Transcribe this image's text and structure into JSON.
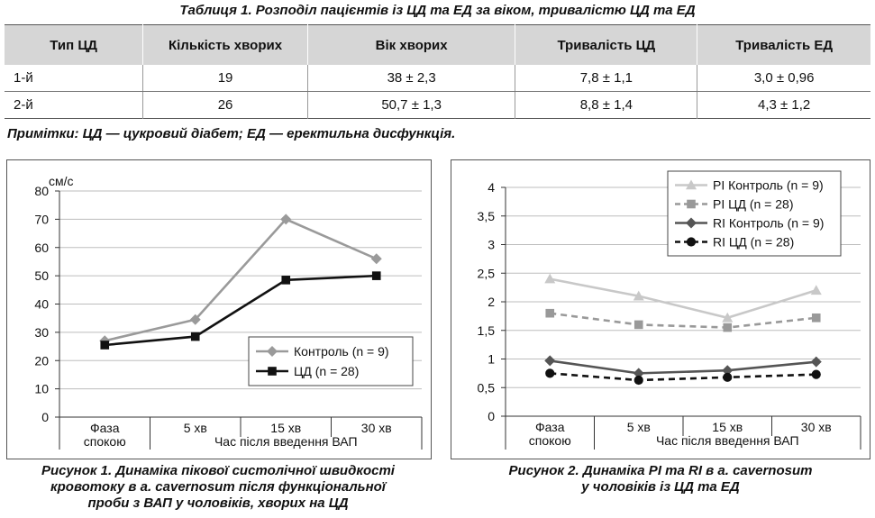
{
  "table": {
    "title": "Таблиця 1.  Розподіл пацієнтів із ЦД та ЕД за віком, тривалістю ЦД та ЕД",
    "headers": [
      "Тип ЦД",
      "Кількість хворих",
      "Вік хворих",
      "Тривалість ЦД",
      "Тривалість ЕД"
    ],
    "rows": [
      [
        "1-й",
        "19",
        "38 ± 2,3",
        "7,8 ± 1,1",
        "3,0 ± 0,96"
      ],
      [
        "2-й",
        "26",
        "50,7 ± 1,3",
        "8,8 ± 1,4",
        "4,3 ± 1,2"
      ]
    ],
    "notes": "Примітки: ЦД — цукровий діабет; ЕД — еректильна дисфункція."
  },
  "chart_data": [
    {
      "type": "line",
      "unit_label": "см/с",
      "categories": [
        "Фаза спокою",
        "5 хв",
        "15 хв",
        "30 хв"
      ],
      "category_lines": [
        [
          "Фаза",
          "спокою"
        ],
        [
          "5 хв"
        ],
        [
          "15 хв"
        ],
        [
          "30 хв"
        ]
      ],
      "xlabel": "Час після введення ВАП",
      "ylim": [
        0,
        80
      ],
      "yticks": [
        "0",
        "10",
        "20",
        "30",
        "40",
        "50",
        "60",
        "70",
        "80"
      ],
      "yvals": [
        0,
        10,
        20,
        30,
        40,
        50,
        60,
        70,
        80
      ],
      "grid": true,
      "legend_position": "bottom-right",
      "series": [
        {
          "name": "Контроль (n = 9)",
          "values": [
            27,
            34.5,
            70,
            56
          ],
          "color": "#9a9a9a",
          "marker": "diamond",
          "dash": "solid"
        },
        {
          "name": "ЦД (n = 28)",
          "values": [
            25.5,
            28.5,
            48.5,
            50
          ],
          "color": "#111111",
          "marker": "square",
          "dash": "solid"
        }
      ],
      "caption": [
        "Рисунок 1.  Динаміка пікової систолічної швидкості",
        "кровотоку в a. cavernosum після функціональної",
        "проби з ВАП у чоловіків, хворих на ЦД"
      ]
    },
    {
      "type": "line",
      "categories": [
        "Фаза спокою",
        "5 хв",
        "15 хв",
        "30 хв"
      ],
      "category_lines": [
        [
          "Фаза",
          "спокою"
        ],
        [
          "5 хв"
        ],
        [
          "15 хв"
        ],
        [
          "30 хв"
        ]
      ],
      "xlabel": "Час після введення ВАП",
      "ylim": [
        0,
        4
      ],
      "yticks": [
        "0",
        "0,5",
        "1",
        "1,5",
        "2",
        "2,5",
        "3",
        "3,5",
        "4"
      ],
      "yvals": [
        0,
        0.5,
        1,
        1.5,
        2,
        2.5,
        3,
        3.5,
        4
      ],
      "grid": true,
      "legend_position": "top-right",
      "series": [
        {
          "name": "PI Контроль (n = 9)",
          "values": [
            2.4,
            2.1,
            1.72,
            2.2
          ],
          "color": "#c8c8c8",
          "marker": "triangle",
          "dash": "solid"
        },
        {
          "name": "PI ЦД (n = 28)",
          "values": [
            1.8,
            1.6,
            1.55,
            1.72
          ],
          "color": "#999999",
          "marker": "square",
          "dash": "dashed"
        },
        {
          "name": "RI Контроль (n = 9)",
          "values": [
            0.97,
            0.75,
            0.8,
            0.95
          ],
          "color": "#555555",
          "marker": "diamond",
          "dash": "solid"
        },
        {
          "name": "RI ЦД (n = 28)",
          "values": [
            0.75,
            0.63,
            0.68,
            0.73
          ],
          "color": "#111111",
          "marker": "circle",
          "dash": "dashed"
        }
      ],
      "caption": [
        "Рисунок 2.  Динаміка PI та RI в a. cavernosum",
        "у чоловіків із ЦД та ЕД"
      ]
    }
  ]
}
